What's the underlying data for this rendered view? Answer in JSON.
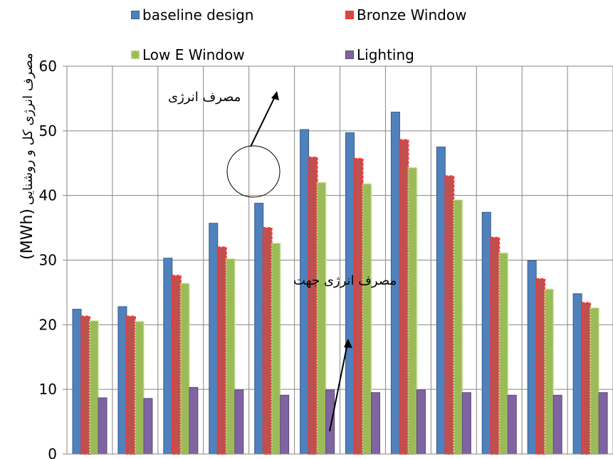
{
  "chart_data": {
    "type": "bar",
    "categories": [
      "",
      "",
      "",
      "",
      "",
      "",
      "",
      "",
      "",
      "",
      "",
      ""
    ],
    "series": [
      {
        "name": "baseline design",
        "color": "#4f81bd",
        "values": [
          22.4,
          22.8,
          30.3,
          35.7,
          38.8,
          50.2,
          49.7,
          52.9,
          47.5,
          37.4,
          29.9,
          24.8
        ]
      },
      {
        "name": "Bronze Window",
        "color": "#c0504d",
        "values": [
          21.3,
          21.3,
          27.6,
          32.0,
          35.0,
          45.9,
          45.7,
          48.6,
          43.0,
          33.5,
          27.1,
          23.4
        ]
      },
      {
        "name": "Low E Window",
        "color": "#9bbb59",
        "values": [
          20.6,
          20.5,
          26.4,
          30.2,
          32.6,
          42.0,
          41.8,
          44.3,
          39.3,
          31.1,
          25.5,
          22.6
        ]
      },
      {
        "name": "Lighting",
        "color": "#8064a2",
        "values": [
          8.7,
          8.6,
          10.3,
          9.9,
          9.1,
          9.9,
          9.5,
          9.9,
          9.5,
          9.1,
          9.1,
          9.5
        ]
      }
    ],
    "ylabel": "مصرف انرژی کل و روشنایی (MWh)",
    "ylim": [
      0,
      60
    ],
    "yticks": [
      0,
      10,
      20,
      30,
      40,
      50,
      60
    ],
    "grid": true,
    "legend_position": "top",
    "annotations": [
      "مصرف انرژی",
      "مصرف انرژی جهت"
    ]
  },
  "legend": {
    "baseline": "baseline design",
    "bronze": "Bronze Window",
    "lowe": "Low E Window",
    "lighting": "Lighting"
  },
  "ylabel": {
    "arabic": "مصرف انرژی کل و روشنایی",
    "unit": "(MWh)"
  },
  "annotations": {
    "top": "مصرف انرژی",
    "middle": "مصرف انرژی جهت"
  }
}
